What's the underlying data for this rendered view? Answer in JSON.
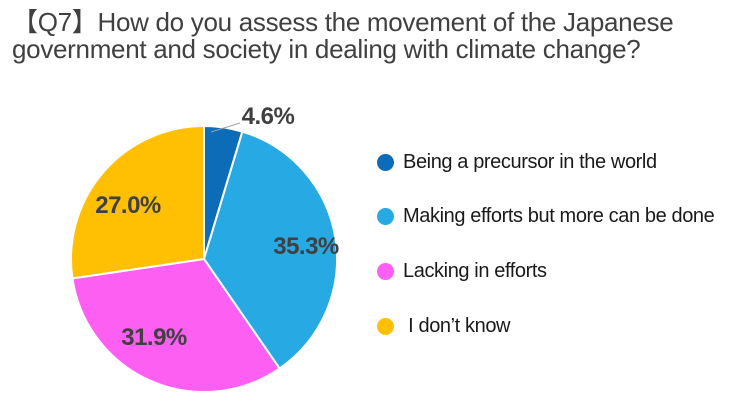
{
  "page": {
    "title": "【Q7】How do you assess the movement of the Japanese government and society in dealing with climate change?",
    "title_color": "#404040",
    "background_color": "#ffffff"
  },
  "chart_data": {
    "type": "pie",
    "title": "【Q7】How do you assess the movement of the Japanese government and society in dealing with climate change?",
    "direction": "clockwise",
    "start_angle_deg": 0,
    "legend_position": "right",
    "label_color": "#404040",
    "legend_text_color": "#1a1a1a",
    "leader_line_color": "#a0a0a0",
    "slice_border_color": "#ffffff",
    "slices": [
      {
        "name": "Being a precursor in the world",
        "value": 4.6,
        "label": "4.6%",
        "color": "#0d6cb8",
        "label_placement": "outside"
      },
      {
        "name": "Making efforts but more can be done",
        "value": 35.3,
        "label": "35.3%",
        "color": "#27aae3",
        "label_placement": "inside"
      },
      {
        "name": "Lacking in efforts",
        "value": 31.9,
        "label": "31.9%",
        "color": "#fc5ff2",
        "label_placement": "inside"
      },
      {
        "name": " I don’t know",
        "value": 27.0,
        "label": "27.0%",
        "color": "#ffc003",
        "label_placement": "inside"
      }
    ]
  }
}
